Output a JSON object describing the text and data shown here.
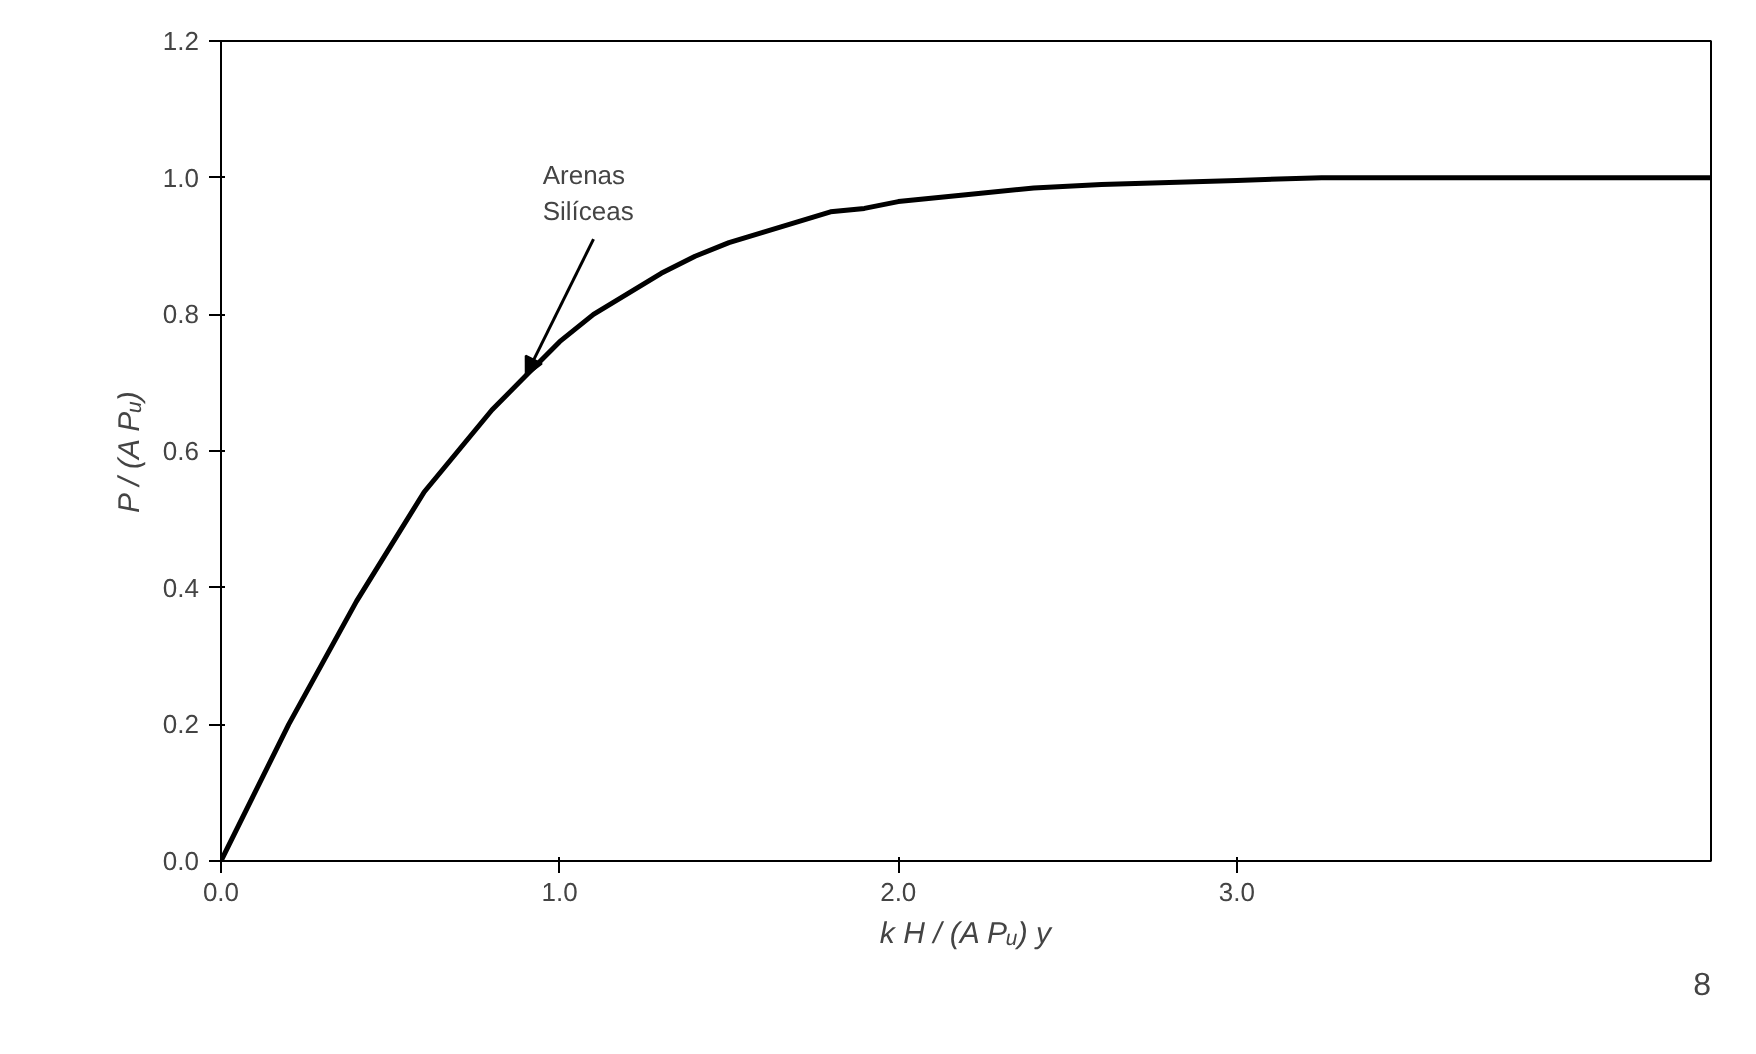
{
  "chart_data": {
    "type": "line",
    "xlabel": "k H / (A Pᵤ) y",
    "ylabel": "P / (A Pᵤ)",
    "x": [
      0,
      0.1,
      0.2,
      0.3,
      0.4,
      0.5,
      0.6,
      0.7,
      0.8,
      0.9,
      1.0,
      1.1,
      1.2,
      1.3,
      1.4,
      1.5,
      1.6,
      1.7,
      1.8,
      1.9,
      2.0,
      2.2,
      2.4,
      2.6,
      2.8,
      3.0,
      3.25,
      3.4,
      4.4
    ],
    "series": [
      {
        "color": "#000000",
        "values": [
          0,
          0.1,
          0.2,
          0.29,
          0.38,
          0.46,
          0.54,
          0.6,
          0.66,
          0.71,
          0.76,
          0.8,
          0.83,
          0.86,
          0.885,
          0.905,
          0.92,
          0.935,
          0.95,
          0.955,
          0.965,
          0.975,
          0.985,
          0.99,
          0.993,
          0.996,
          1.0,
          1.0,
          1.0
        ]
      }
    ],
    "xlim": [
      0,
      4.4
    ],
    "xticks": [
      {
        "value": 0,
        "label": "0.0"
      },
      {
        "value": 1,
        "label": "1.0"
      },
      {
        "value": 2,
        "label": "2.0"
      },
      {
        "value": 3,
        "label": "3.0"
      }
    ],
    "ylim": [
      0,
      1.2
    ],
    "yticks": [
      {
        "value": 0,
        "label": "0.0"
      },
      {
        "value": 0.2,
        "label": "0.2"
      },
      {
        "value": 0.4,
        "label": "0.4"
      },
      {
        "value": 0.6,
        "label": "0.6"
      },
      {
        "value": 0.8,
        "label": "0.8"
      },
      {
        "value": 1.0,
        "label": "1.0"
      },
      {
        "value": 1.2,
        "label": "1.2"
      }
    ],
    "annotations": [
      {
        "text": "Arenas\nSilíceas",
        "x": 0.9,
        "y": 0.71
      },
      "8"
    ],
    "grid": false,
    "marker": "none",
    "line_style": "solid"
  }
}
